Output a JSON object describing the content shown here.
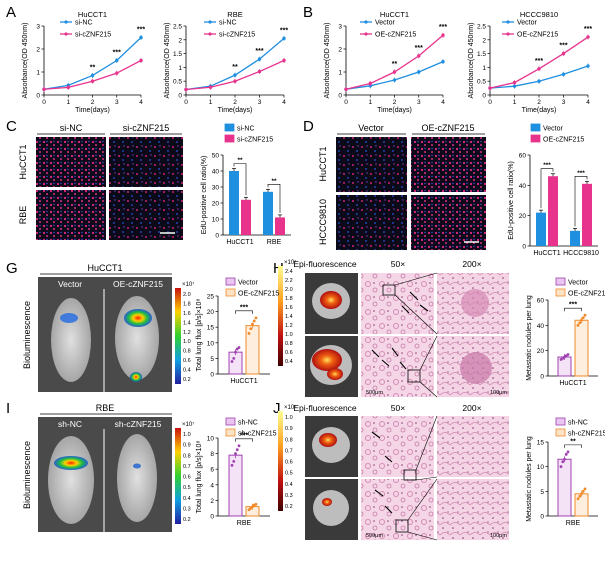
{
  "colors": {
    "blue": "#1f8fe0",
    "pink": "#e8338d",
    "purple": "#a040b0",
    "orange": "#f08a2a"
  },
  "panels": {
    "A": "A",
    "B": "B",
    "C": "C",
    "D": "D",
    "G": "G",
    "H": "H",
    "I": "I",
    "J": "J"
  },
  "imaging": {
    "C": {
      "col1": "si-NC",
      "col2": "si-cZNF215",
      "row1": "HuCCT1",
      "row2": "RBE"
    },
    "D": {
      "col1": "Vector",
      "col2": "OE-cZNF215",
      "row1": "HuCCT1",
      "row2": "HCCC9810"
    },
    "G": {
      "title": "HuCCT1",
      "col1": "Vector",
      "col2": "OE-cZNF215",
      "side": "Bioluminescence",
      "scale_exp": "×10⁷",
      "scale_ticks": [
        "2.0",
        "1.8",
        "1.6",
        "1.4",
        "1.2",
        "1.0",
        "0.8",
        "0.6",
        "0.4",
        "0.2"
      ]
    },
    "I": {
      "title": "RBE",
      "col1": "sh-NC",
      "col2": "sh-cZNF215",
      "side": "Bioluminescence",
      "scale_exp": "×10⁷",
      "scale_ticks": [
        "1.0",
        "0.9",
        "0.8",
        "0.7",
        "0.6",
        "0.5",
        "0.4",
        "0.3",
        "0.2"
      ]
    },
    "H": {
      "epi": "Epi-fluorescence",
      "mag1": "50×",
      "mag2": "200×",
      "scale_exp": "×10⁷",
      "scale_ticks": [
        "2.4",
        "2.2",
        "2.0",
        "1.8",
        "1.6",
        "1.4",
        "1.2",
        "1.0",
        "0.8",
        "0.6",
        "0.4"
      ],
      "bar1": "500μm",
      "bar2": "100μm"
    },
    "J": {
      "epi": "Epi-fluorescence",
      "mag1": "50×",
      "mag2": "200×",
      "scale_exp": "×10⁷",
      "scale_ticks": [
        "1.0",
        "0.9",
        "0.8",
        "0.7",
        "0.6",
        "0.5",
        "0.4",
        "0.3",
        "0.2"
      ],
      "bar1": "500μm",
      "bar2": "100μm"
    }
  },
  "chart_data": [
    {
      "id": "A1",
      "type": "line",
      "title": "HuCCT1",
      "xlabel": "Time(days)",
      "ylabel": "Absorbance(OD 450nm)",
      "x": [
        0,
        1,
        2,
        3,
        4
      ],
      "ylim": [
        0,
        3
      ],
      "yticks": [
        0,
        1,
        2,
        3
      ],
      "series": [
        {
          "name": "si-NC",
          "color": "blue",
          "values": [
            0.25,
            0.42,
            0.85,
            1.5,
            2.5
          ]
        },
        {
          "name": "si-cZNF215",
          "color": "pink",
          "values": [
            0.25,
            0.33,
            0.6,
            0.95,
            1.5
          ]
        }
      ],
      "sig": [
        {
          "x": 2,
          "text": "**"
        },
        {
          "x": 3,
          "text": "***"
        },
        {
          "x": 4,
          "text": "***"
        }
      ]
    },
    {
      "id": "A2",
      "type": "line",
      "title": "RBE",
      "xlabel": "Time(days)",
      "ylabel": "Absorbance(OD 450nm)",
      "x": [
        0,
        1,
        2,
        3,
        4
      ],
      "ylim": [
        0,
        2.5
      ],
      "yticks": [
        0,
        0.5,
        1,
        1.5,
        2,
        2.5
      ],
      "series": [
        {
          "name": "si-NC",
          "color": "blue",
          "values": [
            0.2,
            0.32,
            0.72,
            1.3,
            2.05
          ]
        },
        {
          "name": "si-cZNF215",
          "color": "pink",
          "values": [
            0.2,
            0.28,
            0.5,
            0.85,
            1.25
          ]
        }
      ],
      "sig": [
        {
          "x": 2,
          "text": "**"
        },
        {
          "x": 3,
          "text": "***"
        },
        {
          "x": 4,
          "text": "***"
        }
      ]
    },
    {
      "id": "B1",
      "type": "line",
      "title": "HuCCT1",
      "xlabel": "Time(days)",
      "ylabel": "Absorbance(OD 450nm)",
      "x": [
        0,
        1,
        2,
        3,
        4
      ],
      "ylim": [
        0,
        3
      ],
      "yticks": [
        0,
        1,
        2,
        3
      ],
      "series": [
        {
          "name": "Vector",
          "color": "blue",
          "values": [
            0.25,
            0.4,
            0.65,
            1.0,
            1.45
          ]
        },
        {
          "name": "OE-cZNF215",
          "color": "pink",
          "values": [
            0.25,
            0.5,
            1.0,
            1.7,
            2.6
          ]
        }
      ],
      "sig": [
        {
          "x": 2,
          "text": "**"
        },
        {
          "x": 3,
          "text": "***"
        },
        {
          "x": 4,
          "text": "***"
        }
      ]
    },
    {
      "id": "B2",
      "type": "line",
      "title": "HCCC9810",
      "xlabel": "Time(days)",
      "ylabel": "Absorbance(OD 450nm)",
      "x": [
        0,
        1,
        2,
        3,
        4
      ],
      "ylim": [
        0,
        2.5
      ],
      "yticks": [
        0,
        0.5,
        1,
        1.5,
        2,
        2.5
      ],
      "series": [
        {
          "name": "Vector",
          "color": "blue",
          "values": [
            0.25,
            0.32,
            0.5,
            0.75,
            1.05
          ]
        },
        {
          "name": "OE-cZNF215",
          "color": "pink",
          "values": [
            0.25,
            0.45,
            0.95,
            1.5,
            2.1
          ]
        }
      ],
      "sig": [
        {
          "x": 2,
          "text": "***"
        },
        {
          "x": 3,
          "text": "***"
        },
        {
          "x": 4,
          "text": "***"
        }
      ]
    },
    {
      "id": "C",
      "type": "bar",
      "ylabel": "EdU-positive cell ratio(%)",
      "ylim": [
        0,
        50
      ],
      "yticks": [
        0,
        10,
        20,
        30,
        40,
        50
      ],
      "categories": [
        "HuCCT1",
        "RBE"
      ],
      "series": [
        {
          "name": "si-NC",
          "color": "blue",
          "values": [
            40,
            27
          ]
        },
        {
          "name": "si-cZNF215",
          "color": "pink",
          "values": [
            22,
            11
          ]
        }
      ],
      "sig": [
        "**",
        "**"
      ]
    },
    {
      "id": "D",
      "type": "bar",
      "ylabel": "EdU-positive cell ratio(%)",
      "ylim": [
        0,
        60
      ],
      "yticks": [
        0,
        20,
        40,
        60
      ],
      "categories": [
        "HuCCT1",
        "HCCC9810"
      ],
      "series": [
        {
          "name": "Vector",
          "color": "blue",
          "values": [
            22,
            10
          ]
        },
        {
          "name": "OE-cZNF215",
          "color": "pink",
          "values": [
            46,
            41
          ]
        }
      ],
      "sig": [
        "***",
        "***"
      ]
    },
    {
      "id": "G",
      "type": "bar",
      "ylabel": "Total lung flux [p/s]×10⁸",
      "ylim": [
        0,
        25
      ],
      "yticks": [
        0,
        5,
        10,
        15,
        20,
        25
      ],
      "categories": [
        "HuCCT1"
      ],
      "series": [
        {
          "name": "Vector",
          "color": "purple",
          "values": [
            7
          ],
          "points": [
            4,
            5,
            7,
            8,
            8.5
          ]
        },
        {
          "name": "OE-cZNF215",
          "color": "orange",
          "values": [
            15.5
          ],
          "points": [
            13,
            14.5,
            16,
            17,
            18
          ]
        }
      ],
      "sig": "***"
    },
    {
      "id": "H",
      "type": "bar",
      "ylabel": "Metastatic nodules per lung",
      "ylim": [
        0,
        60
      ],
      "yticks": [
        0,
        20,
        40,
        60
      ],
      "categories": [
        "HuCCT1"
      ],
      "series": [
        {
          "name": "Vector",
          "color": "purple",
          "values": [
            15
          ],
          "points": [
            13,
            14,
            15,
            16,
            17
          ]
        },
        {
          "name": "OE-cZNF215",
          "color": "orange",
          "values": [
            44
          ],
          "points": [
            40,
            42,
            44,
            46,
            48
          ]
        }
      ],
      "sig": "***"
    },
    {
      "id": "I",
      "type": "bar",
      "ylabel": "Total lung flux [p/s]×10⁸",
      "ylim": [
        0,
        10
      ],
      "yticks": [
        0,
        2,
        4,
        6,
        8,
        10
      ],
      "categories": [
        "RBE"
      ],
      "series": [
        {
          "name": "sh-NC",
          "color": "purple",
          "values": [
            7.8
          ],
          "points": [
            6.5,
            7,
            8,
            8.5,
            9
          ]
        },
        {
          "name": "sh-cZNF215",
          "color": "orange",
          "values": [
            1.2
          ],
          "points": [
            0.8,
            1,
            1.2,
            1.4,
            1.5
          ]
        }
      ],
      "sig": "***"
    },
    {
      "id": "J",
      "type": "bar",
      "ylabel": "Metastatic nodules per lung",
      "ylim": [
        0,
        15
      ],
      "yticks": [
        0,
        5,
        10,
        15
      ],
      "categories": [
        "RBE"
      ],
      "series": [
        {
          "name": "sh-NC",
          "color": "purple",
          "values": [
            11.5
          ],
          "points": [
            10,
            11,
            11.5,
            12.5,
            13
          ]
        },
        {
          "name": "sh-cZNF215",
          "color": "orange",
          "values": [
            4.5
          ],
          "points": [
            3.5,
            4,
            4.5,
            5,
            5.5
          ]
        }
      ],
      "sig": "**"
    }
  ]
}
